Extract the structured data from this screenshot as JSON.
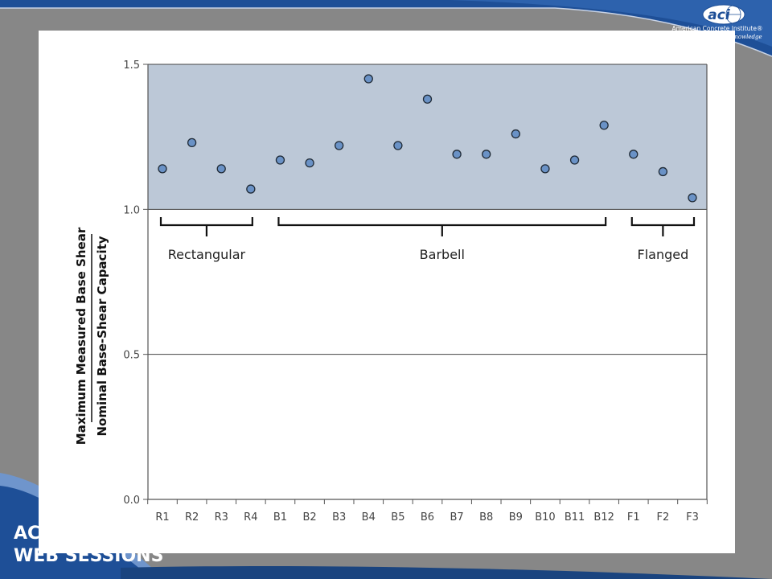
{
  "slide": {
    "logo_mark": "aci",
    "logo_name": "American Concrete Institute®",
    "logo_tagline": "Advancing concrete knowledge",
    "brand_line1": "ACI",
    "brand_line2": "WEB SESSIONS",
    "colors": {
      "banner": "#1e4f97",
      "banner_light": "#4f7fbf",
      "backdrop": "#878787"
    }
  },
  "chart_data": {
    "type": "scatter",
    "title": "",
    "ylabel_numerator": "Maximum Measured Base Shear",
    "ylabel_denominator": "Nominal Base-Shear Capacity",
    "xlabel": "",
    "ylim": [
      0.0,
      1.5
    ],
    "yticks": [
      "0.0",
      "0.5",
      "1.0",
      "1.5"
    ],
    "yticks_values": [
      0.0,
      0.5,
      1.0,
      1.5
    ],
    "shaded_band": [
      1.0,
      1.5
    ],
    "grid": "horizontal lines at 0.5 and 1.0",
    "categories": [
      "R1",
      "R2",
      "R3",
      "R4",
      "B1",
      "B2",
      "B3",
      "B4",
      "B5",
      "B6",
      "B7",
      "B8",
      "B9",
      "B10",
      "B11",
      "B12",
      "F1",
      "F2",
      "F3"
    ],
    "values": [
      1.14,
      1.23,
      1.14,
      1.07,
      1.17,
      1.16,
      1.22,
      1.45,
      1.22,
      1.38,
      1.19,
      1.19,
      1.26,
      1.14,
      1.17,
      1.29,
      1.19,
      1.13,
      1.04
    ],
    "groups": [
      {
        "label": "Rectangular",
        "first": 0,
        "last": 3
      },
      {
        "label": "Barbell",
        "first": 4,
        "last": 15
      },
      {
        "label": "Flanged",
        "first": 16,
        "last": 18
      }
    ],
    "colors": {
      "band": "#bcc8d7",
      "marker": "#6a92c6",
      "marker_edge": "#1f2a36",
      "axis": "#555555"
    }
  }
}
